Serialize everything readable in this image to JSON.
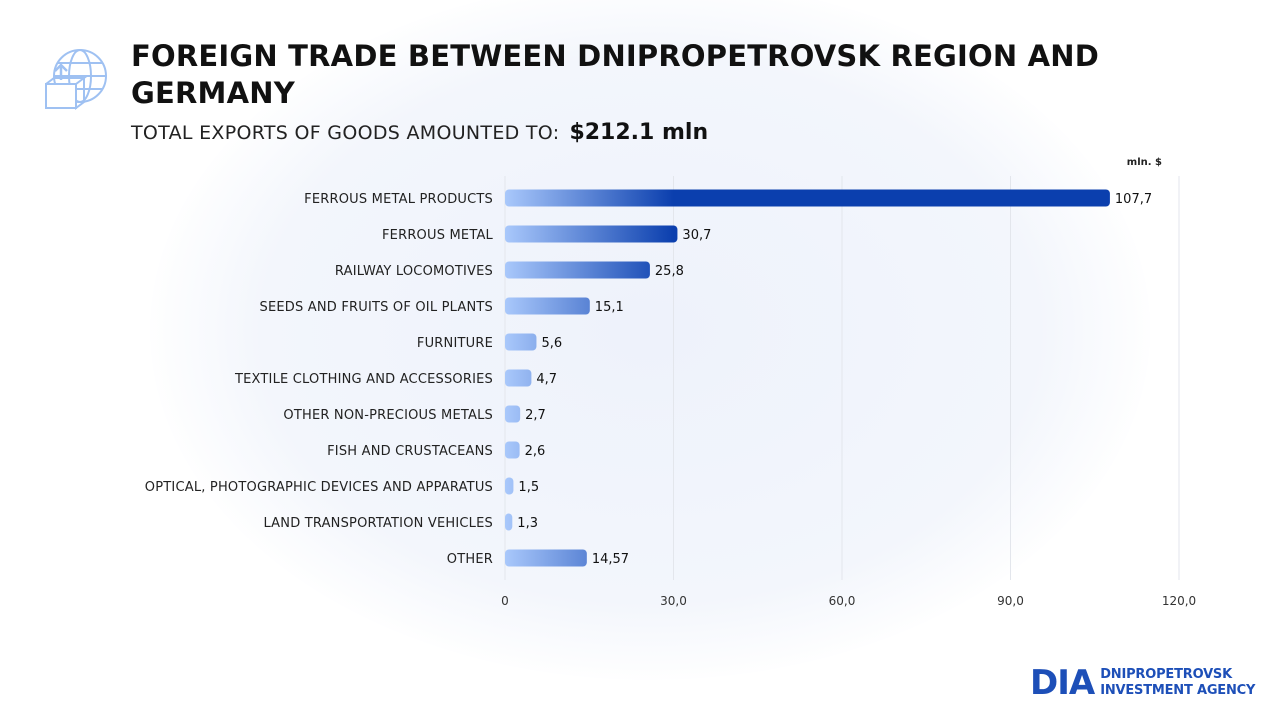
{
  "header": {
    "title": "FOREIGN TRADE BETWEEN DNIPROPETROVSK REGION AND GERMANY",
    "subtitle": "TOTAL EXPORTS OF GOODS AMOUNTED TO:",
    "total": "$212.1 mln",
    "icon": "globe-box-export-icon"
  },
  "chart_data": {
    "type": "bar",
    "orientation": "horizontal",
    "unit_label": "mln. $",
    "categories": [
      "FERROUS METAL PRODUCTS",
      "FERROUS METAL",
      "RAILWAY LOCOMOTIVES",
      "SEEDS AND FRUITS OF OIL PLANTS",
      "FURNITURE",
      "TEXTILE CLOTHING AND ACCESSORIES",
      "OTHER NON-PRECIOUS METALS",
      "FISH AND CRUSTACEANS",
      "OPTICAL, PHOTOGRAPHIC DEVICES AND APPARATUS",
      "LAND TRANSPORTATION VEHICLES",
      "OTHER"
    ],
    "values": [
      107.7,
      30.7,
      25.8,
      15.1,
      5.6,
      4.7,
      2.7,
      2.6,
      1.5,
      1.3,
      14.57
    ],
    "value_labels": [
      "107,7",
      "30,7",
      "25,8",
      "15,1",
      "5,6",
      "4,7",
      "2,7",
      "2,6",
      "1,5",
      "1,3",
      "14,57"
    ],
    "x_ticks": [
      0,
      30,
      60,
      90,
      120
    ],
    "x_tick_labels": [
      "0",
      "30,0",
      "60,0",
      "90,0",
      "120,0"
    ],
    "xlim": [
      0,
      120
    ],
    "grid": true,
    "colors": {
      "bar_start": "#a9c8fb",
      "bar_end": "#0b3fae",
      "grid": "#e3e6ec"
    }
  },
  "logo": {
    "mark": "DIA",
    "line1": "DNIPROPETROVSK",
    "line2": "INVESTMENT AGENCY",
    "color": "#1d4fb8"
  }
}
